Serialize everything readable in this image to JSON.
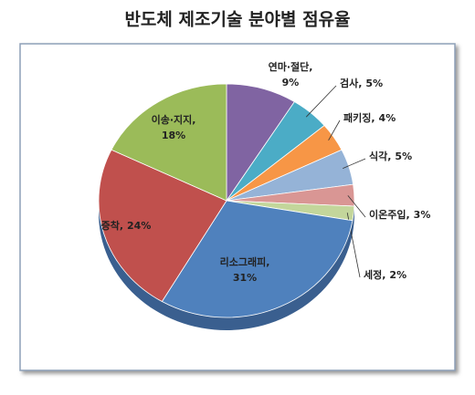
{
  "chart_data": {
    "type": "pie",
    "title": "반도체 제조기술 분야별 점유율",
    "categories": [
      "연마·절단,",
      "검사,",
      "패키징,",
      "식각,",
      "이온주입,",
      "세정,",
      "리소그래피,",
      "증착,",
      "이송·지지,"
    ],
    "values": [
      9,
      5,
      4,
      5,
      3,
      2,
      31,
      24,
      18
    ],
    "value_labels": [
      "9%",
      "5%",
      "4%",
      "5%",
      "3%",
      "2%",
      "31%",
      "24%",
      "18%"
    ],
    "colors": [
      "#8064a2",
      "#4bacc6",
      "#f79646",
      "#95b3d7",
      "#d99694",
      "#c3d69b",
      "#4f81bd",
      "#c0504d",
      "#9bbb59"
    ]
  }
}
